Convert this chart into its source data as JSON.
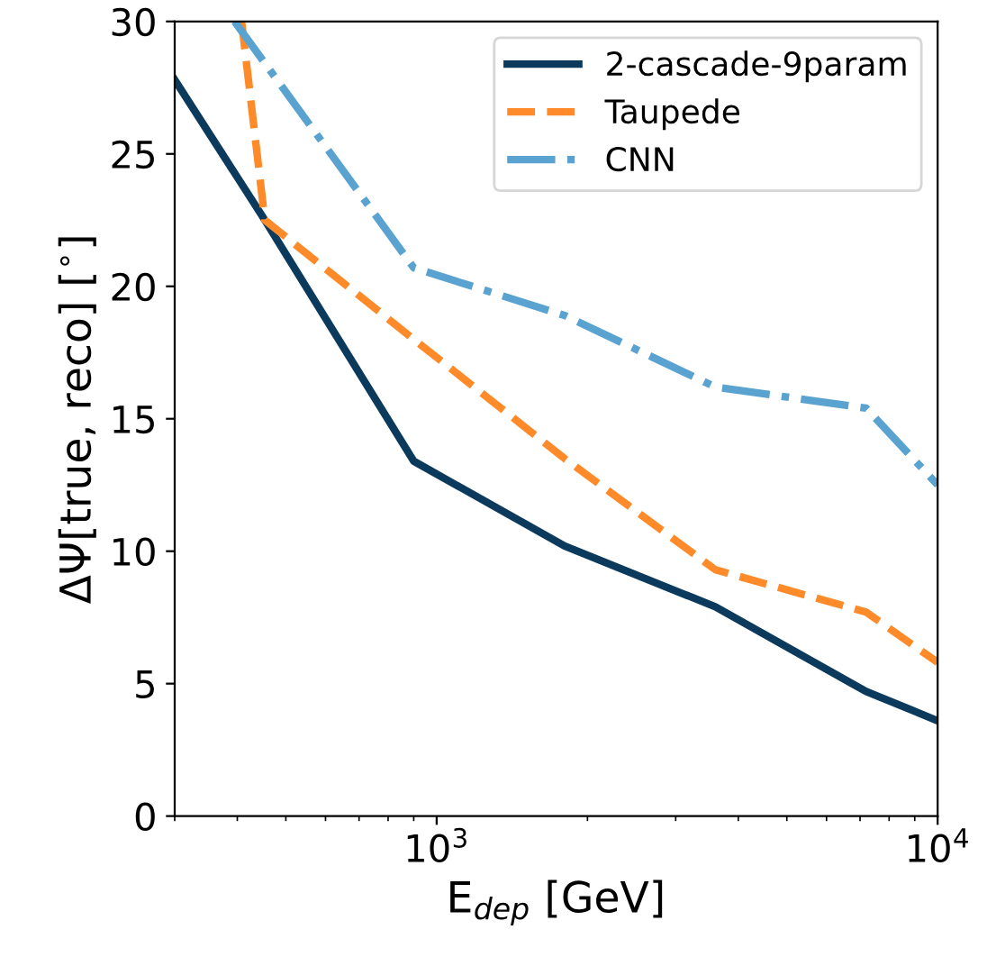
{
  "chart_data": {
    "type": "line",
    "xlabel": "E$_{dep}$ [GeV]",
    "ylabel": "ΔΨ[true, reco] [$^{∘}$]",
    "log": "x",
    "xlim": [
      300,
      10000
    ],
    "xticks": [
      {
        "value": 1000,
        "label": "10$^{3}$"
      },
      {
        "value": 10000,
        "label": "10$^{4}$"
      }
    ],
    "ylim": [
      0,
      30
    ],
    "yticks": [
      0,
      5,
      10,
      15,
      20,
      25,
      30
    ],
    "grid": false,
    "legend": "top right",
    "series": [
      {
        "name": "2-cascade-9param",
        "color": "#0b3a5c",
        "line_style": "solid",
        "x": [
          300,
          454,
          900,
          1800,
          3600,
          7200,
          10000
        ],
        "values": [
          27.8,
          22.5,
          13.4,
          10.2,
          7.9,
          4.7,
          3.6
        ]
      },
      {
        "name": "Taupede",
        "color": "#ff8a2a",
        "line_style": "dashed",
        "x": [
          408,
          454,
          900,
          1800,
          3600,
          7200,
          10000
        ],
        "values": [
          30,
          22.5,
          18,
          13.5,
          9.3,
          7.7,
          5.8
        ]
      },
      {
        "name": "CNN",
        "color": "#5aa3d0",
        "line_style": "dashdot",
        "x": [
          395,
          900,
          1800,
          3600,
          7200,
          10000
        ],
        "values": [
          30,
          20.7,
          18.9,
          16.2,
          15.4,
          12.5
        ]
      }
    ]
  }
}
